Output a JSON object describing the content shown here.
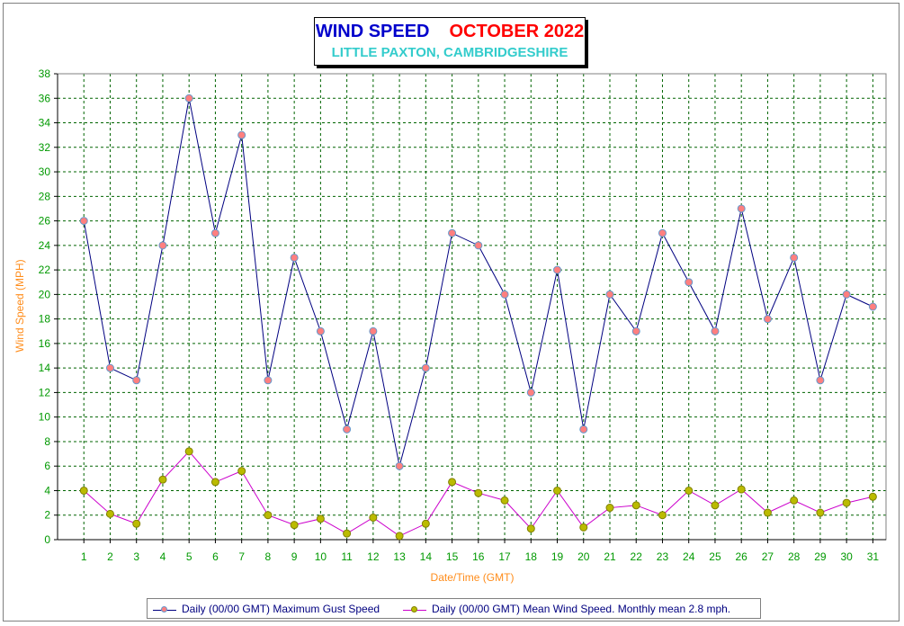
{
  "title": {
    "main": "WIND SPEED",
    "month": "OCTOBER 2022",
    "subtitle": "LITTLE PAXTON, CAMBRIDGESHIRE"
  },
  "colors": {
    "title_main": "#0000cc",
    "title_month": "#ff0000",
    "subtitle": "#33cccc",
    "gust_line": "#000080",
    "gust_marker_fill": "#ff7f7f",
    "gust_marker_stroke": "#6699cc",
    "mean_line": "#cc00cc",
    "mean_marker_fill": "#bbbb00",
    "mean_marker_stroke": "#808000",
    "grid": "#006400",
    "axis_label": "#ff8c1a",
    "tick_label": "#009900"
  },
  "chart_data": {
    "type": "line",
    "xlabel": "Date/Time (GMT)",
    "ylabel": "Wind Speed (MPH)",
    "x": [
      1,
      2,
      3,
      4,
      5,
      6,
      7,
      8,
      9,
      10,
      11,
      12,
      13,
      14,
      15,
      16,
      17,
      18,
      19,
      20,
      21,
      22,
      23,
      24,
      25,
      26,
      27,
      28,
      29,
      30,
      31
    ],
    "xlim": [
      0,
      31.5
    ],
    "ylim": [
      0,
      38
    ],
    "ytick_step": 2,
    "grid": true,
    "legend_position": "bottom",
    "series": [
      {
        "name": "Daily (00/00 GMT) Maximum Gust Speed",
        "values": [
          26,
          14,
          13,
          24,
          36,
          25,
          33,
          13,
          23,
          17,
          9,
          17,
          6,
          14,
          25,
          24,
          20,
          12,
          22,
          9,
          20,
          17,
          25,
          21,
          17,
          27,
          18,
          23,
          13,
          20,
          19
        ]
      },
      {
        "name": "Daily (00/00 GMT) Mean Wind Speed. Monthly mean 2.8 mph.",
        "values": [
          4.0,
          2.1,
          1.3,
          4.9,
          7.2,
          4.7,
          5.6,
          2.0,
          1.2,
          1.7,
          0.5,
          1.8,
          0.3,
          1.3,
          4.7,
          3.8,
          3.2,
          0.9,
          4.0,
          1.0,
          2.6,
          2.8,
          2.0,
          4.0,
          2.8,
          4.1,
          2.2,
          3.2,
          2.2,
          3.0,
          3.5
        ]
      }
    ]
  }
}
